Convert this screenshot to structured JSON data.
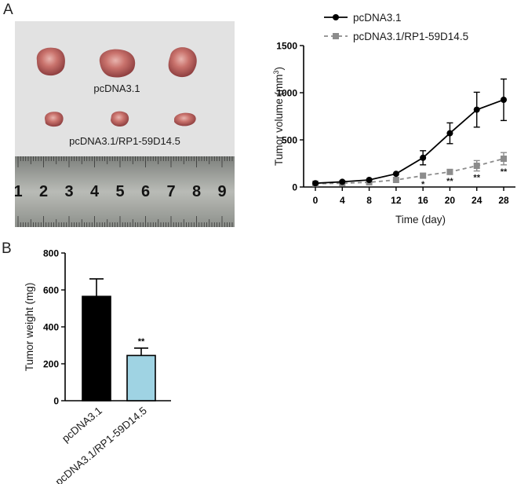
{
  "panels": {
    "a": "A",
    "b": "B"
  },
  "photo": {
    "label_control": "pcDNA3.1",
    "label_treated": "pcDNA3.1/RP1-59D14.5",
    "ruler_numbers": [
      "1",
      "2",
      "3",
      "4",
      "5",
      "6",
      "7",
      "8",
      "9"
    ]
  },
  "chart_data": [
    {
      "type": "line",
      "xlabel": "Time (day)",
      "ylabel_main": "Tumor volume (mm",
      "ylabel_sup": "3",
      "ylabel_end": ")",
      "x": [
        0,
        4,
        8,
        12,
        16,
        20,
        24,
        28
      ],
      "xlim": [
        0,
        28
      ],
      "ylim": [
        0,
        1500
      ],
      "yticks": [
        0,
        500,
        1000,
        1500
      ],
      "legend_position": "top-right",
      "series": [
        {
          "name": "pcDNA3.1",
          "color": "#000000",
          "marker": "circle",
          "line": "solid",
          "values": [
            40,
            55,
            75,
            140,
            310,
            570,
            820,
            925
          ],
          "errors": [
            0,
            0,
            0,
            0,
            75,
            110,
            185,
            220
          ]
        },
        {
          "name": "pcDNA3.1/RP1-59D14.5",
          "color": "#8c8c8c",
          "marker": "square",
          "line": "dashed",
          "values": [
            35,
            40,
            50,
            75,
            120,
            160,
            225,
            300
          ],
          "errors": [
            0,
            0,
            0,
            0,
            20,
            25,
            55,
            65
          ],
          "significance": [
            "",
            "",
            "",
            "",
            "*",
            "**",
            "**",
            "**"
          ]
        }
      ]
    },
    {
      "type": "bar",
      "ylabel": "Tumor weight (mg)",
      "categories": [
        "pcDNA3.1",
        "pcDNA3.1/RP1-59D14.5"
      ],
      "values": [
        565,
        245
      ],
      "errors": [
        95,
        40
      ],
      "colors": [
        "#000000",
        "#9fd3e3"
      ],
      "ylim": [
        0,
        800
      ],
      "yticks": [
        0,
        200,
        400,
        600,
        800
      ],
      "significance": [
        "",
        "**"
      ]
    }
  ]
}
